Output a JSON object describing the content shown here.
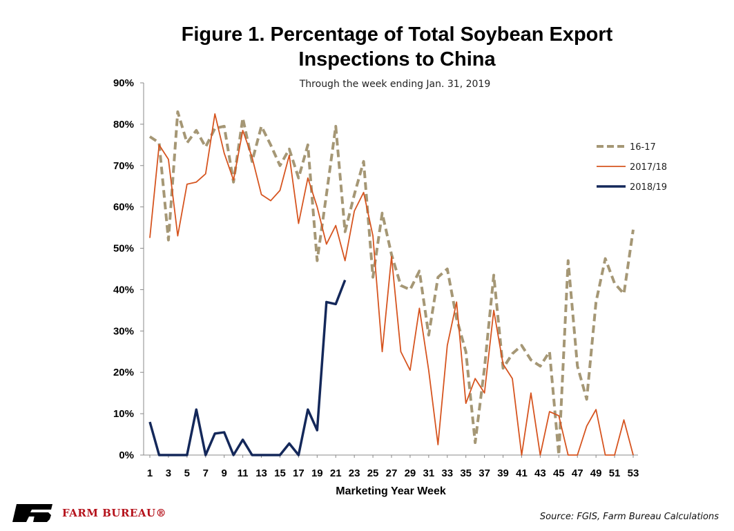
{
  "chart_data": {
    "type": "line",
    "title_line1": "Figure 1. Percentage of Total Soybean Export",
    "title_line2": "Inspections to China",
    "subtitle": "Through the week ending Jan. 31, 2019",
    "xlabel": "Marketing Year Week",
    "ylabel": "",
    "ylim": [
      0,
      90
    ],
    "yticks": [
      "0%",
      "10%",
      "20%",
      "30%",
      "40%",
      "50%",
      "60%",
      "70%",
      "80%",
      "90%"
    ],
    "xticks": [
      "1",
      "3",
      "5",
      "7",
      "9",
      "11",
      "13",
      "15",
      "17",
      "19",
      "21",
      "23",
      "25",
      "27",
      "29",
      "31",
      "33",
      "35",
      "37",
      "39",
      "41",
      "43",
      "45",
      "47",
      "49",
      "51",
      "53"
    ],
    "xlim": [
      1,
      53
    ],
    "grid": false,
    "legend_position": "right",
    "series": [
      {
        "name": "16-17",
        "color": "#a59775",
        "style": "dashed",
        "x": [
          1,
          2,
          3,
          4,
          5,
          6,
          7,
          8,
          9,
          10,
          11,
          12,
          13,
          14,
          15,
          16,
          17,
          18,
          19,
          20,
          21,
          22,
          23,
          24,
          25,
          26,
          27,
          28,
          29,
          30,
          31,
          32,
          33,
          34,
          35,
          36,
          37,
          38,
          39,
          40,
          41,
          42,
          43,
          44,
          45,
          46,
          47,
          48,
          49,
          50,
          51,
          52,
          53
        ],
        "values": [
          77,
          75.5,
          52,
          83,
          75.5,
          78.5,
          74.5,
          79,
          79.5,
          66,
          81.5,
          71,
          79.5,
          75,
          70,
          74,
          67,
          75,
          47,
          63,
          79.5,
          54,
          63,
          71,
          43,
          58.5,
          48.5,
          41,
          40,
          44.5,
          29,
          43,
          45,
          33,
          25,
          3,
          21,
          43.5,
          21,
          24.5,
          26.5,
          23,
          21.5,
          25,
          0,
          47,
          21.5,
          13.5,
          37,
          47.5,
          41.5,
          39,
          54.5
        ]
      },
      {
        "name": "2017/18",
        "color": "#d6541f",
        "style": "solid",
        "x": [
          1,
          2,
          3,
          4,
          5,
          6,
          7,
          8,
          9,
          10,
          11,
          12,
          13,
          14,
          15,
          16,
          17,
          18,
          19,
          20,
          21,
          22,
          23,
          24,
          25,
          26,
          27,
          28,
          29,
          30,
          31,
          32,
          33,
          34,
          35,
          36,
          37,
          38,
          39,
          40,
          41,
          42,
          43,
          44,
          45,
          46,
          47,
          48,
          49,
          50,
          51,
          52,
          53
        ],
        "values": [
          52.5,
          75,
          71.5,
          53,
          65.5,
          66,
          68,
          82.5,
          73,
          66.5,
          78.5,
          72,
          63,
          61.5,
          64,
          72.5,
          56,
          67,
          60,
          51,
          55.5,
          47,
          59,
          63.5,
          53,
          25,
          48,
          25,
          20.5,
          35.5,
          20.5,
          2.5,
          26.5,
          37,
          12.5,
          18.5,
          15,
          35,
          22,
          18.5,
          0,
          15,
          0,
          10.5,
          9.5,
          0,
          0,
          7,
          11,
          0,
          0,
          8.5,
          0
        ]
      },
      {
        "name": "2018/19",
        "color": "#14285a",
        "style": "solid",
        "x": [
          1,
          2,
          3,
          4,
          5,
          6,
          7,
          8,
          9,
          10,
          11,
          12,
          13,
          14,
          15,
          16,
          17,
          18,
          19,
          20,
          21,
          22
        ],
        "values": [
          8,
          0,
          0,
          0,
          0,
          11,
          0,
          5.2,
          5.5,
          0,
          3.7,
          0,
          0,
          0,
          0,
          2.8,
          0,
          11,
          6,
          37,
          36.5,
          42.3
        ]
      }
    ]
  },
  "footer": {
    "source": "Source: FGIS, Farm Bureau Calculations",
    "brand": "FARM BUREAU®",
    "brand_color": "#b5121b"
  }
}
